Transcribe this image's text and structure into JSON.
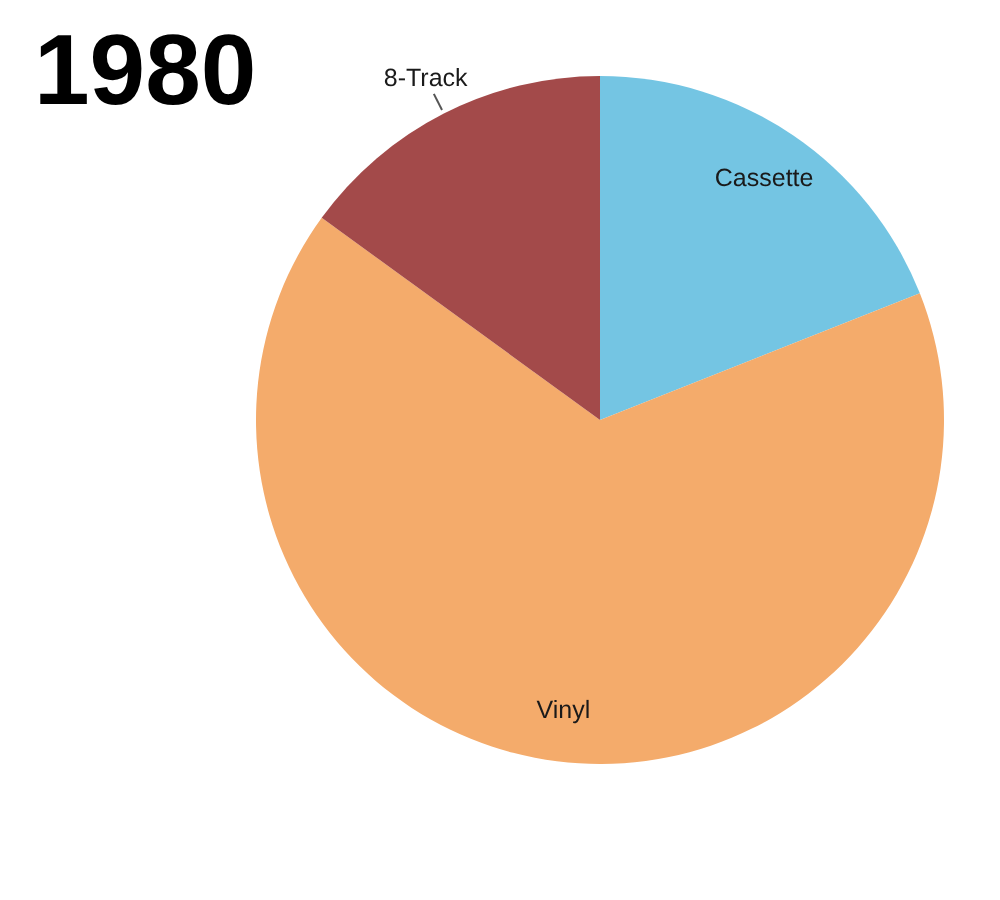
{
  "chart_data": {
    "type": "pie",
    "title": "1980",
    "categories": [
      "Cassette",
      "Vinyl",
      "8-Track"
    ],
    "values": [
      19,
      66,
      15
    ],
    "colors": [
      "#74c5e3",
      "#f4ab6b",
      "#a34a4a"
    ]
  }
}
